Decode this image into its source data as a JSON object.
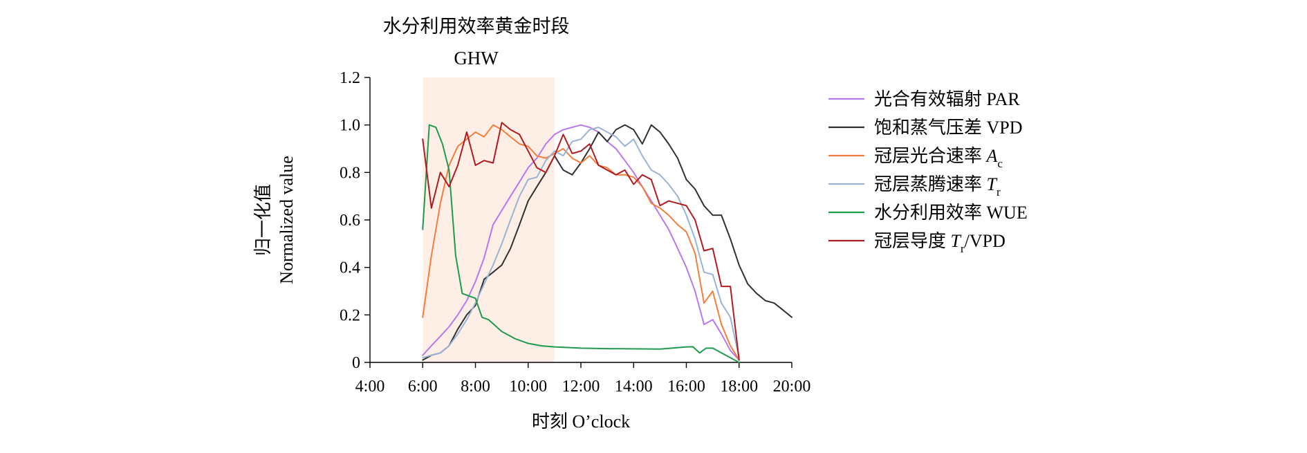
{
  "chart_data": {
    "type": "line",
    "title": "",
    "annotation": {
      "label_cn": "水分利用效率黄金时段",
      "label_en": "GHW",
      "x_range": [
        6.0,
        11.0
      ],
      "color": "#fdeee6"
    },
    "xlabel": "时刻 O’clock",
    "ylabel_cn": "归一化值",
    "ylabel_en": "Normalized value",
    "xlim": [
      4,
      20
    ],
    "ylim": [
      0,
      1.2
    ],
    "x_ticks": [
      4,
      6,
      8,
      10,
      12,
      14,
      16,
      18,
      20
    ],
    "x_tick_labels": [
      "4:00",
      "6:00",
      "8:00",
      "10:00",
      "12:00",
      "14:00",
      "16:00",
      "18:00",
      "20:00"
    ],
    "y_ticks": [
      0,
      0.2,
      0.4,
      0.6,
      0.8,
      1.0,
      1.2
    ],
    "y_tick_labels": [
      "0",
      "0.2",
      "0.4",
      "0.6",
      "0.8",
      "1.0",
      "1.2"
    ],
    "legend_position": "right",
    "series": [
      {
        "name": "光合有效辐射 PAR",
        "color": "#b777f0",
        "x": [
          6.0,
          6.33,
          6.67,
          7.0,
          7.33,
          7.67,
          8.0,
          8.33,
          8.67,
          9.0,
          9.33,
          9.67,
          10.0,
          10.33,
          10.67,
          11.0,
          11.33,
          11.67,
          12.0,
          12.33,
          12.67,
          13.0,
          13.33,
          13.67,
          14.0,
          14.33,
          14.67,
          15.0,
          15.33,
          15.67,
          16.0,
          16.33,
          16.67,
          17.0,
          17.33,
          17.67,
          18.0
        ],
        "values": [
          0.03,
          0.07,
          0.11,
          0.15,
          0.2,
          0.26,
          0.34,
          0.44,
          0.58,
          0.64,
          0.7,
          0.76,
          0.82,
          0.86,
          0.92,
          0.96,
          0.98,
          0.99,
          1.0,
          0.99,
          0.97,
          0.93,
          0.9,
          0.85,
          0.8,
          0.74,
          0.68,
          0.62,
          0.56,
          0.48,
          0.4,
          0.3,
          0.16,
          0.18,
          0.12,
          0.05,
          0.01
        ]
      },
      {
        "name": "饱和蒸气压差 VPD",
        "color": "#303030",
        "x": [
          6.0,
          6.33,
          6.67,
          7.0,
          7.33,
          7.67,
          8.0,
          8.33,
          8.67,
          9.0,
          9.33,
          9.67,
          10.0,
          10.33,
          10.67,
          11.0,
          11.33,
          11.67,
          12.0,
          12.33,
          12.67,
          13.0,
          13.33,
          13.67,
          14.0,
          14.33,
          14.67,
          15.0,
          15.33,
          15.67,
          16.0,
          16.33,
          16.67,
          17.0,
          17.33,
          17.67,
          18.0,
          18.33,
          18.67,
          19.0,
          19.33,
          19.67,
          20.0
        ],
        "values": [
          0.01,
          0.03,
          0.04,
          0.07,
          0.14,
          0.2,
          0.24,
          0.35,
          0.38,
          0.41,
          0.48,
          0.58,
          0.68,
          0.74,
          0.8,
          0.87,
          0.81,
          0.79,
          0.84,
          0.9,
          0.97,
          0.93,
          0.98,
          1.0,
          0.98,
          0.92,
          1.0,
          0.97,
          0.92,
          0.86,
          0.77,
          0.73,
          0.66,
          0.62,
          0.62,
          0.52,
          0.41,
          0.33,
          0.29,
          0.26,
          0.25,
          0.22,
          0.19
        ]
      },
      {
        "name": "冠层光合速率 A_c",
        "name_main": "冠层光合速率 ",
        "name_italic": "A",
        "name_sub": "c",
        "name_after": "",
        "color": "#f47d3c",
        "x": [
          6.0,
          6.33,
          6.67,
          7.0,
          7.33,
          7.67,
          8.0,
          8.33,
          8.67,
          9.0,
          9.33,
          9.67,
          10.0,
          10.33,
          10.67,
          11.0,
          11.33,
          11.67,
          12.0,
          12.33,
          12.67,
          13.0,
          13.33,
          13.67,
          14.0,
          14.33,
          14.67,
          15.0,
          15.33,
          15.67,
          16.0,
          16.33,
          16.67,
          17.0,
          17.33,
          17.67,
          18.0
        ],
        "values": [
          0.19,
          0.45,
          0.67,
          0.83,
          0.91,
          0.94,
          0.97,
          0.95,
          1.0,
          0.98,
          0.95,
          0.92,
          0.91,
          0.87,
          0.86,
          0.88,
          0.9,
          0.86,
          0.84,
          0.87,
          0.83,
          0.82,
          0.79,
          0.79,
          0.78,
          0.74,
          0.67,
          0.65,
          0.62,
          0.58,
          0.55,
          0.46,
          0.25,
          0.3,
          0.16,
          0.07,
          0.01
        ]
      },
      {
        "name": "冠层蒸腾速率 T_r",
        "name_main": "冠层蒸腾速率 ",
        "name_italic": "T",
        "name_sub": "r",
        "name_after": "",
        "color": "#9ab3d6",
        "x": [
          6.0,
          6.33,
          6.67,
          7.0,
          7.33,
          7.67,
          8.0,
          8.33,
          8.67,
          9.0,
          9.33,
          9.67,
          10.0,
          10.33,
          10.67,
          11.0,
          11.33,
          11.67,
          12.0,
          12.33,
          12.67,
          13.0,
          13.33,
          13.67,
          14.0,
          14.33,
          14.67,
          15.0,
          15.33,
          15.67,
          16.0,
          16.33,
          16.67,
          17.0,
          17.33,
          17.67,
          18.0
        ],
        "values": [
          0.02,
          0.03,
          0.04,
          0.07,
          0.12,
          0.18,
          0.25,
          0.33,
          0.41,
          0.5,
          0.6,
          0.7,
          0.77,
          0.78,
          0.85,
          0.89,
          0.87,
          0.93,
          0.94,
          0.98,
          0.99,
          0.97,
          0.95,
          0.91,
          0.94,
          0.87,
          0.81,
          0.79,
          0.75,
          0.7,
          0.62,
          0.52,
          0.38,
          0.37,
          0.25,
          0.19,
          0.02
        ]
      },
      {
        "name": "水分利用效率 WUE",
        "color": "#1f9a4c",
        "x": [
          6.0,
          6.25,
          6.5,
          6.75,
          7.0,
          7.25,
          7.5,
          7.75,
          8.0,
          8.25,
          8.5,
          9.0,
          9.5,
          10.0,
          10.5,
          11.0,
          12.0,
          13.0,
          14.0,
          15.0,
          16.0,
          16.25,
          16.5,
          16.75,
          17.0,
          17.5,
          18.0
        ],
        "values": [
          0.56,
          1.0,
          0.99,
          0.92,
          0.81,
          0.45,
          0.29,
          0.28,
          0.27,
          0.19,
          0.18,
          0.13,
          0.1,
          0.08,
          0.07,
          0.065,
          0.06,
          0.058,
          0.057,
          0.056,
          0.065,
          0.066,
          0.04,
          0.06,
          0.06,
          0.03,
          0.0
        ]
      },
      {
        "name": "冠层导度 T_r/VPD",
        "name_main": "冠层导度 ",
        "name_italic": "T",
        "name_sub": "r",
        "name_after": "/VPD",
        "color": "#b01a1f",
        "x": [
          6.0,
          6.33,
          6.67,
          7.0,
          7.33,
          7.67,
          8.0,
          8.33,
          8.67,
          9.0,
          9.33,
          9.67,
          10.0,
          10.33,
          10.67,
          11.0,
          11.33,
          11.67,
          12.0,
          12.33,
          12.67,
          13.0,
          13.33,
          13.67,
          14.0,
          14.33,
          14.67,
          15.0,
          15.33,
          15.67,
          16.0,
          16.33,
          16.67,
          17.0,
          17.33,
          17.67,
          18.0
        ],
        "values": [
          0.94,
          0.65,
          0.8,
          0.74,
          0.83,
          0.97,
          0.83,
          0.85,
          0.84,
          1.01,
          0.98,
          0.96,
          0.89,
          0.82,
          0.8,
          0.87,
          0.96,
          0.88,
          0.89,
          0.92,
          0.83,
          0.81,
          0.79,
          0.81,
          0.75,
          0.79,
          0.77,
          0.66,
          0.68,
          0.67,
          0.66,
          0.6,
          0.47,
          0.48,
          0.32,
          0.32,
          0.01
        ]
      }
    ]
  }
}
